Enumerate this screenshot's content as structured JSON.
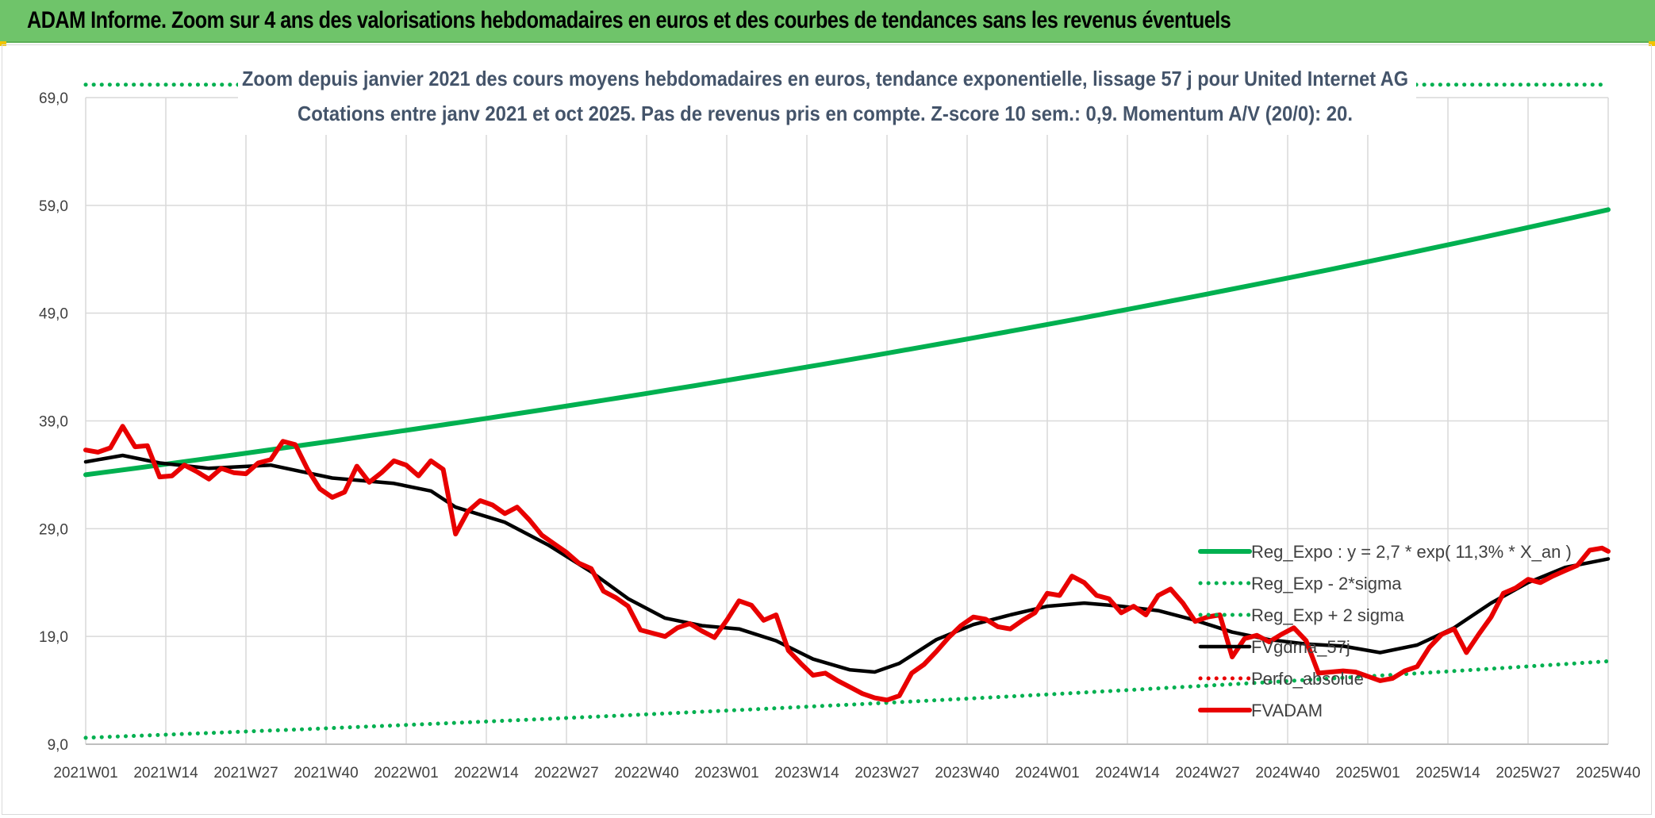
{
  "header": {
    "title": "ADAM Informe. Zoom sur 4 ans des valorisations hebdomadaires en euros et des courbes de tendances sans les revenus éventuels"
  },
  "colors": {
    "header_bg": "#6fc46a",
    "reg_expo": "#00b050",
    "fvadam": "#e80000",
    "fvgdma": "#000000",
    "perfo": "#e80000",
    "grid": "#d9d9d9",
    "axis_text": "#404040",
    "title_text": "#44546a"
  },
  "chart_data": {
    "type": "line",
    "title": "Zoom depuis janvier 2021 des cours moyens hebdomadaires en euros, tendance exponentielle, lissage 57 j pour United Internet AG",
    "subtitle": "Cotations entre janv 2021 et oct 2025. Pas de revenus pris en compte. Z-score 10 sem.: 0,9. Momentum A/V (20/0): 20.",
    "xlabel": "",
    "ylabel": "",
    "ylim": [
      9,
      69
    ],
    "yticks": [
      "69,0",
      "59,0",
      "49,0",
      "39,0",
      "29,0",
      "19,0",
      "9,0"
    ],
    "x_range": [
      0,
      247
    ],
    "x_ticks": [
      {
        "label": "2021W01",
        "x": 0
      },
      {
        "label": "2021W14",
        "x": 13
      },
      {
        "label": "2021W27",
        "x": 26
      },
      {
        "label": "2021W40",
        "x": 39
      },
      {
        "label": "2022W01",
        "x": 52
      },
      {
        "label": "2022W14",
        "x": 65
      },
      {
        "label": "2022W27",
        "x": 78
      },
      {
        "label": "2022W40",
        "x": 91
      },
      {
        "label": "2023W01",
        "x": 104
      },
      {
        "label": "2023W14",
        "x": 117
      },
      {
        "label": "2023W27",
        "x": 130
      },
      {
        "label": "2023W40",
        "x": 143
      },
      {
        "label": "2024W01",
        "x": 156
      },
      {
        "label": "2024W14",
        "x": 169
      },
      {
        "label": "2024W27",
        "x": 182
      },
      {
        "label": "2024W40",
        "x": 195
      },
      {
        "label": "2025W01",
        "x": 208
      },
      {
        "label": "2025W14",
        "x": 221
      },
      {
        "label": "2025W27",
        "x": 234
      },
      {
        "label": "2025W40",
        "x": 247
      }
    ],
    "legend": [
      {
        "name": "Reg_Expo : y = 2,7 * exp( 11,3% *  X_an )",
        "key": "reg_expo",
        "style": "solid"
      },
      {
        "name": "Reg_Exp - 2*sigma",
        "key": "reg_minus",
        "style": "dotted"
      },
      {
        "name": "Reg_Exp + 2 sigma",
        "key": "reg_plus",
        "style": "dotted"
      },
      {
        "name": "FVgdma_57j",
        "key": "fvgdma",
        "style": "solid"
      },
      {
        "name": "Perfo_absolue",
        "key": "perfo",
        "style": "dotted"
      },
      {
        "name": "FVADAM",
        "key": "fvadam",
        "style": "solid"
      }
    ],
    "series": [
      {
        "name": "Reg_Expo",
        "key": "reg_expo",
        "x": [
          0,
          247
        ],
        "values": [
          34.0,
          58.6
        ],
        "exponential": true
      },
      {
        "name": "Reg_Exp - 2*sigma",
        "key": "reg_minus",
        "x": [
          0,
          247
        ],
        "values": [
          9.6,
          16.7
        ],
        "exponential": true
      },
      {
        "name": "Reg_Exp + 2 sigma",
        "key": "reg_plus",
        "x": [
          0,
          247
        ],
        "values": [
          70.2,
          70.2
        ],
        "exponential": false
      },
      {
        "name": "FVgdma_57j",
        "key": "fvgdma",
        "x": [
          0,
          6,
          12,
          20,
          30,
          40,
          50,
          56,
          60,
          68,
          75,
          82,
          88,
          94,
          100,
          106,
          112,
          118,
          124,
          128,
          132,
          138,
          144,
          150,
          156,
          162,
          168,
          174,
          180,
          186,
          192,
          198,
          204,
          210,
          216,
          222,
          228,
          234,
          240,
          247
        ],
        "values": [
          35.2,
          35.8,
          35.1,
          34.6,
          34.9,
          33.7,
          33.2,
          32.5,
          31.0,
          29.6,
          27.5,
          25.0,
          22.5,
          20.7,
          20.0,
          19.7,
          18.6,
          16.9,
          15.9,
          15.7,
          16.5,
          18.7,
          20.1,
          21.0,
          21.8,
          22.1,
          21.8,
          21.4,
          20.5,
          19.4,
          18.7,
          18.3,
          18.1,
          17.5,
          18.2,
          19.8,
          22.1,
          24.0,
          25.4,
          26.2
        ]
      },
      {
        "name": "FVADAM",
        "key": "fvadam",
        "x": [
          0,
          2,
          4,
          6,
          8,
          10,
          12,
          14,
          16,
          18,
          20,
          22,
          24,
          26,
          28,
          30,
          32,
          34,
          36,
          38,
          40,
          42,
          44,
          46,
          48,
          50,
          52,
          54,
          56,
          58,
          60,
          62,
          64,
          66,
          68,
          70,
          72,
          74,
          76,
          78,
          80,
          82,
          84,
          86,
          88,
          90,
          92,
          94,
          96,
          98,
          100,
          102,
          104,
          106,
          108,
          110,
          112,
          114,
          116,
          118,
          120,
          122,
          124,
          126,
          128,
          130,
          132,
          134,
          136,
          138,
          140,
          142,
          144,
          146,
          148,
          150,
          152,
          154,
          156,
          158,
          160,
          162,
          164,
          166,
          168,
          170,
          172,
          174,
          176,
          178,
          180,
          182,
          184,
          186,
          188,
          190,
          192,
          194,
          196,
          198,
          200,
          202,
          204,
          206,
          208,
          210,
          212,
          214,
          216,
          218,
          220,
          222,
          224,
          226,
          228,
          230,
          232,
          234,
          236,
          238,
          240,
          242,
          244,
          246,
          247
        ],
        "values": [
          36.3,
          36.1,
          36.5,
          38.5,
          36.6,
          36.7,
          33.8,
          33.9,
          34.9,
          34.3,
          33.6,
          34.6,
          34.2,
          34.1,
          35.1,
          35.4,
          37.1,
          36.8,
          34.5,
          32.7,
          31.9,
          32.4,
          34.8,
          33.3,
          34.2,
          35.3,
          34.9,
          33.9,
          35.3,
          34.5,
          28.5,
          30.6,
          31.6,
          31.2,
          30.4,
          31.0,
          29.8,
          28.4,
          27.6,
          26.8,
          25.8,
          25.3,
          23.2,
          22.6,
          21.8,
          19.6,
          19.3,
          19.0,
          19.8,
          20.2,
          19.5,
          18.9,
          20.5,
          22.3,
          21.9,
          20.5,
          21.0,
          17.7,
          16.5,
          15.4,
          15.6,
          14.9,
          14.3,
          13.7,
          13.3,
          13.1,
          13.5,
          15.6,
          16.4,
          17.6,
          18.9,
          20.0,
          20.8,
          20.6,
          19.9,
          19.7,
          20.5,
          21.2,
          23.0,
          22.8,
          24.6,
          24.0,
          22.8,
          22.5,
          21.2,
          21.8,
          21.0,
          22.8,
          23.4,
          22.1,
          20.4,
          20.8,
          21.0,
          17.1,
          18.8,
          19.1,
          18.5,
          19.2,
          19.8,
          18.6,
          15.6,
          15.7,
          15.8,
          15.7,
          15.3,
          14.9,
          15.1,
          15.8,
          16.2,
          18.0,
          19.2,
          19.7,
          17.5,
          19.2,
          20.8,
          23.0,
          23.5,
          24.3,
          24.0,
          24.6,
          25.1,
          25.6,
          27.0,
          27.2,
          26.9
        ]
      }
    ]
  }
}
